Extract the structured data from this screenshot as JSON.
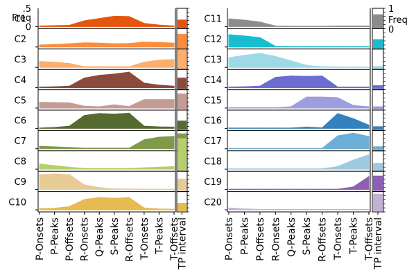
{
  "chart_data": [
    {
      "type": "area",
      "panel": "left",
      "categories": [
        "P-Onsets",
        "P-Peaks",
        "P-Offsets",
        "R-Onsets",
        "Q-Peaks",
        "S-Peaks",
        "R-Offsets",
        "T-Onsets",
        "T-Peaks",
        "T-Offsets"
      ],
      "extra_column_label": "TP interval",
      "ylim": [
        0,
        0.5
      ],
      "scale_ticks": [
        ".5",
        "0"
      ],
      "scale_label": "Freq",
      "series": [
        {
          "name": "C1",
          "color": "#e6550d",
          "values": [
            0.02,
            0.03,
            0.04,
            0.18,
            0.25,
            0.32,
            0.31,
            0.1,
            0.05,
            0.02
          ],
          "tp": 0.22
        },
        {
          "name": "C2",
          "color": "#fd8d3c",
          "values": [
            0.06,
            0.08,
            0.1,
            0.13,
            0.12,
            0.1,
            0.11,
            0.15,
            0.14,
            0.12
          ],
          "tp": 0.38
        },
        {
          "name": "C3",
          "color": "#fdae6b",
          "values": [
            0.18,
            0.16,
            0.12,
            0.02,
            0.02,
            0.02,
            0.02,
            0.16,
            0.22,
            0.24
          ],
          "tp": 0.5
        },
        {
          "name": "C4",
          "color": "#8c4a3c",
          "values": [
            0.02,
            0.03,
            0.05,
            0.3,
            0.38,
            0.42,
            0.48,
            0.14,
            0.08,
            0.05
          ],
          "tp": 0.3
        },
        {
          "name": "C5",
          "color": "#c49c94",
          "values": [
            0.18,
            0.17,
            0.16,
            0.06,
            0.04,
            0.1,
            0.05,
            0.26,
            0.26,
            0.26
          ],
          "tp": 0.42
        },
        {
          "name": "C6",
          "color": "#556b2f",
          "values": [
            0.01,
            0.03,
            0.07,
            0.4,
            0.46,
            0.44,
            0.47,
            0.07,
            0.05,
            0.04
          ],
          "tp": 0.24
        },
        {
          "name": "C7",
          "color": "#7f9a48",
          "values": [
            0.08,
            0.06,
            0.04,
            0.02,
            0.02,
            0.02,
            0.02,
            0.28,
            0.36,
            0.38
          ],
          "tp": 0.44
        },
        {
          "name": "C8",
          "color": "#b5cf6b",
          "values": [
            0.16,
            0.11,
            0.06,
            0.02,
            0.02,
            0.02,
            0.02,
            0.04,
            0.06,
            0.08
          ],
          "tp": 0.85
        },
        {
          "name": "C9",
          "color": "#e7cb94",
          "values": [
            0.46,
            0.48,
            0.46,
            0.14,
            0.06,
            0.02,
            0.02,
            0.01,
            0.01,
            0.01
          ],
          "tp": 0.32
        },
        {
          "name": "C10",
          "color": "#e7ba52",
          "values": [
            0.04,
            0.05,
            0.1,
            0.32,
            0.38,
            0.36,
            0.38,
            0.06,
            0.03,
            0.02
          ],
          "tp": 0.22
        }
      ]
    },
    {
      "type": "area",
      "panel": "right",
      "categories": [
        "P-Onsets",
        "P-Peaks",
        "P-Offsets",
        "R-Onsets",
        "Q-Peaks",
        "S-Peaks",
        "R-Offsets",
        "T-Onsets",
        "T-Peaks",
        "T-Offsets"
      ],
      "extra_column_label": "TP interval",
      "ylim": [
        0,
        0.5
      ],
      "tp_ylim": [
        0,
        1
      ],
      "scale_ticks": [
        "1",
        "0"
      ],
      "scale_label": "Freq",
      "series": [
        {
          "name": "C11",
          "color": "#8c8c8c",
          "values": [
            0.24,
            0.2,
            0.14,
            0.02,
            0.01,
            0.01,
            0.01,
            0.02,
            0.02,
            0.02
          ],
          "tp": 0.72
        },
        {
          "name": "C12",
          "color": "#17becf",
          "values": [
            0.38,
            0.34,
            0.29,
            0.02,
            0.01,
            0.01,
            0.01,
            0.01,
            0.01,
            0.01
          ],
          "tp": 0.48
        },
        {
          "name": "C13",
          "color": "#9edae5",
          "values": [
            0.3,
            0.37,
            0.43,
            0.34,
            0.2,
            0.06,
            0.02,
            0.01,
            0.01,
            0.01
          ],
          "tp": 0.14
        },
        {
          "name": "C14",
          "color": "#6b6ecf",
          "values": [
            0.02,
            0.03,
            0.05,
            0.32,
            0.36,
            0.35,
            0.36,
            0.02,
            0.02,
            0.02
          ],
          "tp": 0.2
        },
        {
          "name": "C15",
          "color": "#9c9ede",
          "values": [
            0.01,
            0.01,
            0.01,
            0.01,
            0.04,
            0.34,
            0.34,
            0.32,
            0.08,
            0.04
          ],
          "tp": 0.16
        },
        {
          "name": "C16",
          "color": "#3182bd",
          "values": [
            0.01,
            0.01,
            0.01,
            0.01,
            0.01,
            0.04,
            0.02,
            0.46,
            0.3,
            0.1
          ],
          "tp": 0.18
        },
        {
          "name": "C17",
          "color": "#6baed6",
          "values": [
            0.01,
            0.01,
            0.01,
            0.01,
            0.01,
            0.01,
            0.01,
            0.4,
            0.48,
            0.38
          ],
          "tp": 0.2
        },
        {
          "name": "C18",
          "color": "#9ecae1",
          "values": [
            0.01,
            0.01,
            0.01,
            0.01,
            0.01,
            0.01,
            0.01,
            0.08,
            0.28,
            0.44
          ],
          "tp": 0.4
        },
        {
          "name": "C19",
          "color": "#8e5fb5",
          "values": [
            0.01,
            0.01,
            0.01,
            0.01,
            0.01,
            0.01,
            0.01,
            0.01,
            0.08,
            0.4
          ],
          "tp": 0.8
        },
        {
          "name": "C20",
          "color": "#c5b0d5",
          "values": [
            0.06,
            0.03,
            0.01,
            0.01,
            0.01,
            0.01,
            0.01,
            0.01,
            0.01,
            0.01
          ],
          "tp": 0.92
        }
      ]
    }
  ]
}
